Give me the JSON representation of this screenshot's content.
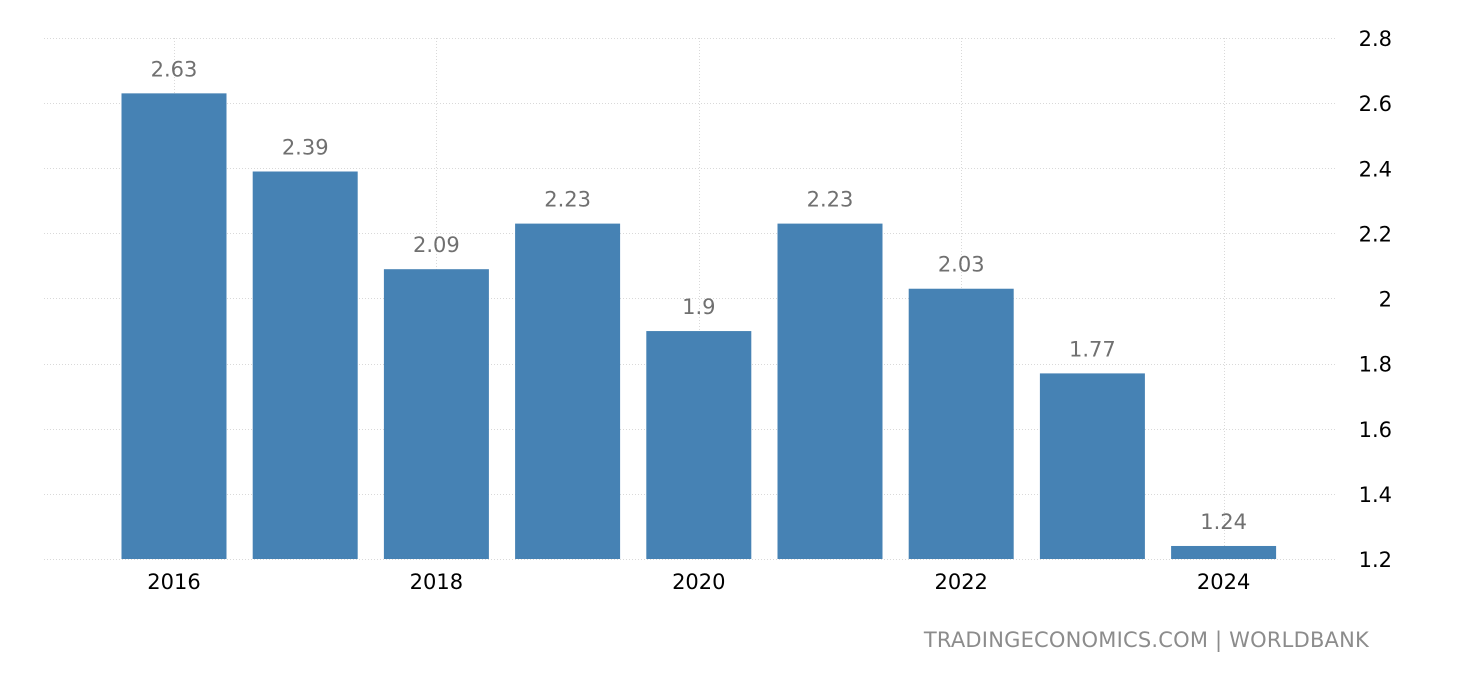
{
  "source_credit": "TRADINGECONOMICS.COM | WORLDBANK",
  "colors": {
    "bar": "#4682b4",
    "value_label": "#707070",
    "grid": "#d9d9d9",
    "tick": "#000000",
    "source": "#8c8c8c"
  },
  "chart_data": {
    "type": "bar",
    "categories": [
      "2016",
      "2017",
      "2018",
      "2019",
      "2020",
      "2021",
      "2022",
      "2023",
      "2024"
    ],
    "values": [
      2.63,
      2.39,
      2.09,
      2.23,
      1.9,
      2.23,
      2.03,
      1.77,
      1.24
    ],
    "data_labels": [
      "2.63",
      "2.39",
      "2.09",
      "2.23",
      "1.9",
      "2.23",
      "2.03",
      "1.77",
      "1.24"
    ],
    "x_tick_labels": [
      "2016",
      "2018",
      "2020",
      "2022",
      "2024"
    ],
    "y_tick_labels": [
      "1.2",
      "1.4",
      "1.6",
      "1.8",
      "2",
      "2.2",
      "2.4",
      "2.6",
      "2.8"
    ],
    "y_ticks": [
      1.2,
      1.4,
      1.6,
      1.8,
      2.0,
      2.2,
      2.4,
      2.6,
      2.8
    ],
    "ylim": [
      1.2,
      2.8
    ],
    "y_axis_side": "right",
    "grid": true,
    "title": "",
    "xlabel": "",
    "ylabel": ""
  }
}
